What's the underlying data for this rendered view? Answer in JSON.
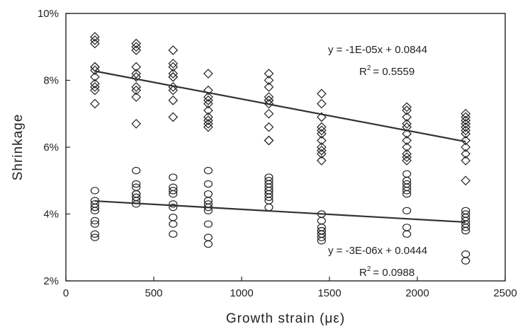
{
  "chart_data": {
    "type": "scatter",
    "xlabel": "Growth strain (με)",
    "ylabel": "Shrinkage",
    "xlim": [
      0,
      2500
    ],
    "ylim": [
      0.02,
      0.1
    ],
    "x_ticks": [
      "0",
      "500",
      "1000",
      "1500",
      "2000",
      "2500"
    ],
    "y_ticks": [
      "2%",
      "4%",
      "6%",
      "8%",
      "10%"
    ],
    "grid": false,
    "series": [
      {
        "marker": "diamond",
        "color": "#222222",
        "points": [
          [
            165,
            0.093
          ],
          [
            165,
            0.092
          ],
          [
            165,
            0.091
          ],
          [
            165,
            0.084
          ],
          [
            165,
            0.084
          ],
          [
            165,
            0.083
          ],
          [
            165,
            0.081
          ],
          [
            165,
            0.079
          ],
          [
            165,
            0.078
          ],
          [
            165,
            0.077
          ],
          [
            165,
            0.073
          ],
          [
            400,
            0.091
          ],
          [
            400,
            0.09
          ],
          [
            400,
            0.089
          ],
          [
            400,
            0.084
          ],
          [
            400,
            0.082
          ],
          [
            400,
            0.081
          ],
          [
            400,
            0.078
          ],
          [
            400,
            0.077
          ],
          [
            400,
            0.075
          ],
          [
            400,
            0.067
          ],
          [
            610,
            0.089
          ],
          [
            610,
            0.085
          ],
          [
            610,
            0.084
          ],
          [
            610,
            0.082
          ],
          [
            610,
            0.081
          ],
          [
            610,
            0.081
          ],
          [
            610,
            0.078
          ],
          [
            610,
            0.077
          ],
          [
            610,
            0.074
          ],
          [
            610,
            0.069
          ],
          [
            810,
            0.082
          ],
          [
            810,
            0.077
          ],
          [
            810,
            0.075
          ],
          [
            810,
            0.074
          ],
          [
            810,
            0.073
          ],
          [
            810,
            0.071
          ],
          [
            810,
            0.069
          ],
          [
            810,
            0.068
          ],
          [
            810,
            0.067
          ],
          [
            810,
            0.066
          ],
          [
            1155,
            0.082
          ],
          [
            1155,
            0.08
          ],
          [
            1155,
            0.078
          ],
          [
            1155,
            0.075
          ],
          [
            1155,
            0.074
          ],
          [
            1155,
            0.074
          ],
          [
            1155,
            0.073
          ],
          [
            1155,
            0.07
          ],
          [
            1155,
            0.066
          ],
          [
            1155,
            0.062
          ],
          [
            1155,
            0.062
          ],
          [
            1455,
            0.076
          ],
          [
            1455,
            0.073
          ],
          [
            1455,
            0.069
          ],
          [
            1455,
            0.066
          ],
          [
            1455,
            0.065
          ],
          [
            1455,
            0.064
          ],
          [
            1455,
            0.062
          ],
          [
            1455,
            0.06
          ],
          [
            1455,
            0.059
          ],
          [
            1455,
            0.058
          ],
          [
            1455,
            0.056
          ],
          [
            1940,
            0.072
          ],
          [
            1940,
            0.071
          ],
          [
            1940,
            0.069
          ],
          [
            1940,
            0.067
          ],
          [
            1940,
            0.066
          ],
          [
            1940,
            0.064
          ],
          [
            1940,
            0.062
          ],
          [
            1940,
            0.06
          ],
          [
            1940,
            0.058
          ],
          [
            1940,
            0.057
          ],
          [
            1940,
            0.056
          ],
          [
            2275,
            0.07
          ],
          [
            2275,
            0.069
          ],
          [
            2275,
            0.068
          ],
          [
            2275,
            0.067
          ],
          [
            2275,
            0.066
          ],
          [
            2275,
            0.065
          ],
          [
            2275,
            0.064
          ],
          [
            2275,
            0.062
          ],
          [
            2275,
            0.06
          ],
          [
            2275,
            0.058
          ],
          [
            2275,
            0.056
          ],
          [
            2275,
            0.05
          ]
        ],
        "trendline": {
          "slope": -1e-05,
          "intercept": 0.0844,
          "from": 165,
          "to": 2275
        },
        "equation": "y = -1E-05x + 0.0844",
        "r2_label": "R",
        "r2_value": "= 0.5559"
      },
      {
        "marker": "circle",
        "color": "#222222",
        "points": [
          [
            165,
            0.047
          ],
          [
            165,
            0.044
          ],
          [
            165,
            0.043
          ],
          [
            165,
            0.042
          ],
          [
            165,
            0.042
          ],
          [
            165,
            0.041
          ],
          [
            165,
            0.038
          ],
          [
            165,
            0.037
          ],
          [
            165,
            0.034
          ],
          [
            165,
            0.033
          ],
          [
            400,
            0.053
          ],
          [
            400,
            0.049
          ],
          [
            400,
            0.048
          ],
          [
            400,
            0.046
          ],
          [
            400,
            0.046
          ],
          [
            400,
            0.045
          ],
          [
            400,
            0.045
          ],
          [
            400,
            0.044
          ],
          [
            400,
            0.043
          ],
          [
            610,
            0.051
          ],
          [
            610,
            0.048
          ],
          [
            610,
            0.047
          ],
          [
            610,
            0.047
          ],
          [
            610,
            0.046
          ],
          [
            610,
            0.043
          ],
          [
            610,
            0.042
          ],
          [
            610,
            0.039
          ],
          [
            610,
            0.037
          ],
          [
            610,
            0.034
          ],
          [
            810,
            0.053
          ],
          [
            810,
            0.049
          ],
          [
            810,
            0.046
          ],
          [
            810,
            0.044
          ],
          [
            810,
            0.043
          ],
          [
            810,
            0.042
          ],
          [
            810,
            0.041
          ],
          [
            810,
            0.037
          ],
          [
            810,
            0.033
          ],
          [
            810,
            0.031
          ],
          [
            1155,
            0.051
          ],
          [
            1155,
            0.05
          ],
          [
            1155,
            0.049
          ],
          [
            1155,
            0.048
          ],
          [
            1155,
            0.047
          ],
          [
            1155,
            0.047
          ],
          [
            1155,
            0.046
          ],
          [
            1155,
            0.045
          ],
          [
            1155,
            0.044
          ],
          [
            1155,
            0.042
          ],
          [
            1455,
            0.04
          ],
          [
            1455,
            0.038
          ],
          [
            1455,
            0.036
          ],
          [
            1455,
            0.035
          ],
          [
            1455,
            0.035
          ],
          [
            1455,
            0.034
          ],
          [
            1455,
            0.034
          ],
          [
            1455,
            0.033
          ],
          [
            1455,
            0.032
          ],
          [
            1940,
            0.052
          ],
          [
            1940,
            0.05
          ],
          [
            1940,
            0.049
          ],
          [
            1940,
            0.048
          ],
          [
            1940,
            0.047
          ],
          [
            1940,
            0.046
          ],
          [
            1940,
            0.041
          ],
          [
            1940,
            0.036
          ],
          [
            1940,
            0.034
          ],
          [
            2275,
            0.041
          ],
          [
            2275,
            0.04
          ],
          [
            2275,
            0.039
          ],
          [
            2275,
            0.038
          ],
          [
            2275,
            0.037
          ],
          [
            2275,
            0.036
          ],
          [
            2275,
            0.035
          ],
          [
            2275,
            0.028
          ],
          [
            2275,
            0.026
          ]
        ],
        "trendline": {
          "slope": -3e-06,
          "intercept": 0.0444,
          "from": 165,
          "to": 2275
        },
        "equation": "y = -3E-06x + 0.0444",
        "r2_label": "R",
        "r2_value": "= 0.0988"
      }
    ]
  }
}
